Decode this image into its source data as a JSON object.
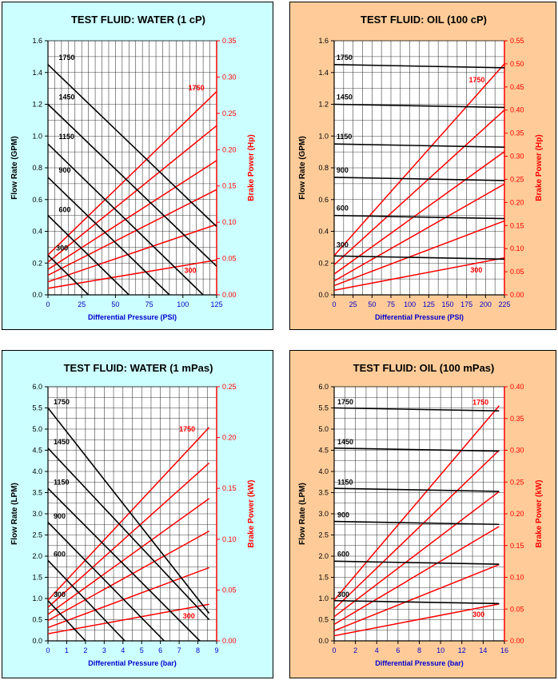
{
  "chart_data": [
    {
      "type": "line",
      "title": "TEST FLUID:  WATER (1 cP)",
      "xlabel": "Differential Pressure (PSI)",
      "ylabel": "Flow Rate (GPM)",
      "y2label": "Brake Power (Hp)",
      "bg": "#ccffff",
      "xlim": [
        0,
        125
      ],
      "xticks": [
        0,
        25,
        50,
        75,
        100,
        125
      ],
      "xminor": 5,
      "ylim": [
        0,
        1.6
      ],
      "yticks": [
        0.0,
        0.2,
        0.4,
        0.6,
        0.8,
        1.0,
        1.2,
        1.4,
        1.6
      ],
      "yminor": 0.1,
      "ydec": 1,
      "y2lim": [
        0,
        0.35
      ],
      "y2ticks": [
        0.0,
        0.05,
        0.1,
        0.15,
        0.2,
        0.25,
        0.3,
        0.35
      ],
      "y2dec": 2,
      "flow": [
        {
          "name": "1750",
          "x": [
            0,
            125
          ],
          "y": [
            1.45,
            0.43
          ]
        },
        {
          "name": "1450",
          "x": [
            0,
            125
          ],
          "y": [
            1.2,
            0.18
          ]
        },
        {
          "name": "1150",
          "x": [
            0,
            115
          ],
          "y": [
            0.95,
            0.0
          ]
        },
        {
          "name": "900",
          "x": [
            0,
            90
          ],
          "y": [
            0.74,
            0.0
          ]
        },
        {
          "name": "600",
          "x": [
            0,
            60
          ],
          "y": [
            0.5,
            0.0
          ]
        },
        {
          "name": "300",
          "x": [
            0,
            30
          ],
          "y": [
            0.25,
            0.0
          ]
        }
      ],
      "power": [
        {
          "name": "1750",
          "x": [
            0,
            125
          ],
          "y": [
            0.055,
            0.28
          ]
        },
        {
          "name": "1450",
          "x": [
            0,
            125
          ],
          "y": [
            0.045,
            0.233
          ]
        },
        {
          "name": "1150",
          "x": [
            0,
            125
          ],
          "y": [
            0.035,
            0.185
          ]
        },
        {
          "name": "900",
          "x": [
            0,
            125
          ],
          "y": [
            0.027,
            0.145
          ]
        },
        {
          "name": "600",
          "x": [
            0,
            125
          ],
          "y": [
            0.018,
            0.097
          ]
        },
        {
          "name": "300",
          "x": [
            0,
            125
          ],
          "y": [
            0.009,
            0.048
          ]
        }
      ],
      "flow_labels": [
        {
          "text": "1750",
          "x": 8,
          "y": 1.47
        },
        {
          "text": "1450",
          "x": 8,
          "y": 1.22
        },
        {
          "text": "1150",
          "x": 8,
          "y": 0.97
        },
        {
          "text": "900",
          "x": 8,
          "y": 0.76
        },
        {
          "text": "600",
          "x": 8,
          "y": 0.51
        },
        {
          "text": "300",
          "x": 6,
          "y": 0.27
        }
      ],
      "power_labels": [
        {
          "text": "1750",
          "x": 104,
          "y": 0.282
        },
        {
          "text": "300",
          "x": 101,
          "y": 0.03
        }
      ]
    },
    {
      "type": "line",
      "title": "TEST FLUID:  OIL (100 cP)",
      "xlabel": "Differential Pressure (PSI)",
      "ylabel": "Flow Rate (GPM)",
      "y2label": "Brake Power (Hp)",
      "bg": "#ffcc99",
      "xlim": [
        0,
        225
      ],
      "xticks": [
        0,
        25,
        50,
        75,
        100,
        125,
        150,
        175,
        200,
        225
      ],
      "xminor": 12.5,
      "ylim": [
        0,
        1.6
      ],
      "yticks": [
        0.0,
        0.2,
        0.4,
        0.6,
        0.8,
        1.0,
        1.2,
        1.4,
        1.6
      ],
      "yminor": 0.1,
      "ydec": 1,
      "y2lim": [
        0,
        0.55
      ],
      "y2ticks": [
        0.0,
        0.05,
        0.1,
        0.15,
        0.2,
        0.25,
        0.3,
        0.35,
        0.4,
        0.45,
        0.5,
        0.55
      ],
      "y2dec": 2,
      "flow": [
        {
          "name": "1750",
          "x": [
            0,
            225
          ],
          "y": [
            1.45,
            1.43
          ]
        },
        {
          "name": "1450",
          "x": [
            0,
            225
          ],
          "y": [
            1.2,
            1.18
          ]
        },
        {
          "name": "1150",
          "x": [
            0,
            225
          ],
          "y": [
            0.95,
            0.93
          ]
        },
        {
          "name": "900",
          "x": [
            0,
            225
          ],
          "y": [
            0.74,
            0.72
          ]
        },
        {
          "name": "600",
          "x": [
            0,
            225
          ],
          "y": [
            0.5,
            0.48
          ]
        },
        {
          "name": "300",
          "x": [
            0,
            225
          ],
          "y": [
            0.245,
            0.225
          ]
        }
      ],
      "power": [
        {
          "name": "1750",
          "x": [
            0,
            225
          ],
          "y": [
            0.085,
            0.5
          ]
        },
        {
          "name": "1450",
          "x": [
            0,
            225
          ],
          "y": [
            0.065,
            0.4
          ]
        },
        {
          "name": "1150",
          "x": [
            0,
            225
          ],
          "y": [
            0.045,
            0.31
          ]
        },
        {
          "name": "900",
          "x": [
            0,
            225
          ],
          "y": [
            0.03,
            0.24
          ]
        },
        {
          "name": "600",
          "x": [
            0,
            225
          ],
          "y": [
            0.02,
            0.16
          ]
        },
        {
          "name": "300",
          "x": [
            0,
            225
          ],
          "y": [
            0.01,
            0.08
          ]
        }
      ],
      "flow_labels": [
        {
          "text": "1750",
          "x": 3,
          "y": 1.47
        },
        {
          "text": "1450",
          "x": 3,
          "y": 1.22
        },
        {
          "text": "1150",
          "x": 3,
          "y": 0.97
        },
        {
          "text": "900",
          "x": 3,
          "y": 0.76
        },
        {
          "text": "600",
          "x": 3,
          "y": 0.52
        },
        {
          "text": "300",
          "x": 3,
          "y": 0.29
        }
      ],
      "power_labels": [
        {
          "text": "1750",
          "x": 178,
          "y": 0.46
        },
        {
          "text": "300",
          "x": 180,
          "y": 0.048
        }
      ]
    },
    {
      "type": "line",
      "title": "TEST FLUID:  WATER (1 mPas)",
      "xlabel": "Differential Pressure (bar)",
      "ylabel": "Flow Rate (LPM)",
      "y2label": "Brake Power (kW)",
      "bg": "#ccffff",
      "xlim": [
        0,
        9
      ],
      "xticks": [
        0,
        1,
        2,
        3,
        4,
        5,
        6,
        7,
        8,
        9
      ],
      "xminor": 0.5,
      "ylim": [
        0,
        6
      ],
      "yticks": [
        0.0,
        0.5,
        1.0,
        1.5,
        2.0,
        2.5,
        3.0,
        3.5,
        4.0,
        4.5,
        5.0,
        5.5,
        6.0
      ],
      "yminor": 0.25,
      "ydec": 1,
      "y2lim": [
        0,
        0.25
      ],
      "y2ticks": [
        0.0,
        0.05,
        0.1,
        0.15,
        0.2,
        0.25
      ],
      "y2dec": 2,
      "flow": [
        {
          "name": "1750",
          "x": [
            0,
            8.6
          ],
          "y": [
            5.5,
            0.65
          ]
        },
        {
          "name": "1450",
          "x": [
            0,
            8.6
          ],
          "y": [
            4.55,
            0.5
          ]
        },
        {
          "name": "1150",
          "x": [
            0,
            8.1
          ],
          "y": [
            3.6,
            0.0
          ]
        },
        {
          "name": "900",
          "x": [
            0,
            6.2
          ],
          "y": [
            2.8,
            0.0
          ]
        },
        {
          "name": "600",
          "x": [
            0,
            4.1
          ],
          "y": [
            1.9,
            0.0
          ]
        },
        {
          "name": "300",
          "x": [
            0,
            2.0
          ],
          "y": [
            0.95,
            0.0
          ]
        }
      ],
      "power": [
        {
          "name": "1750",
          "x": [
            0,
            8.6
          ],
          "y": [
            0.04,
            0.21
          ]
        },
        {
          "name": "1450",
          "x": [
            0,
            8.6
          ],
          "y": [
            0.033,
            0.175
          ]
        },
        {
          "name": "1150",
          "x": [
            0,
            8.6
          ],
          "y": [
            0.026,
            0.14
          ]
        },
        {
          "name": "900",
          "x": [
            0,
            8.6
          ],
          "y": [
            0.02,
            0.108
          ]
        },
        {
          "name": "600",
          "x": [
            0,
            8.6
          ],
          "y": [
            0.013,
            0.072
          ]
        },
        {
          "name": "300",
          "x": [
            0,
            8.6
          ],
          "y": [
            0.007,
            0.036
          ]
        }
      ],
      "flow_labels": [
        {
          "text": "1750",
          "x": 0.3,
          "y": 5.55
        },
        {
          "text": "1450",
          "x": 0.3,
          "y": 4.6
        },
        {
          "text": "1150",
          "x": 0.3,
          "y": 3.65
        },
        {
          "text": "900",
          "x": 0.3,
          "y": 2.85
        },
        {
          "text": "600",
          "x": 0.3,
          "y": 1.95
        },
        {
          "text": "300",
          "x": 0.3,
          "y": 1.0
        }
      ],
      "power_labels": [
        {
          "text": "1750",
          "x": 7.0,
          "y": 0.206
        },
        {
          "text": "300",
          "x": 7.2,
          "y": 0.022
        }
      ]
    },
    {
      "type": "line",
      "title": "TEST FLUID:  OIL (100 mPas)",
      "xlabel": "Differential Pressure (bar)",
      "ylabel": "Flow Rate (LPM)",
      "y2label": "Brake Power (kW)",
      "bg": "#ffcc99",
      "xlim": [
        0,
        16
      ],
      "xticks": [
        0,
        2,
        4,
        6,
        8,
        10,
        12,
        14,
        16
      ],
      "xminor": 1,
      "ylim": [
        0,
        6
      ],
      "yticks": [
        0.0,
        0.5,
        1.0,
        1.5,
        2.0,
        2.5,
        3.0,
        3.5,
        4.0,
        4.5,
        5.0,
        5.5,
        6.0
      ],
      "yminor": 0.25,
      "ydec": 1,
      "y2lim": [
        0,
        0.4
      ],
      "y2ticks": [
        0.0,
        0.05,
        0.1,
        0.15,
        0.2,
        0.25,
        0.3,
        0.35,
        0.4
      ],
      "y2dec": 2,
      "flow": [
        {
          "name": "1750",
          "x": [
            0,
            15.5
          ],
          "y": [
            5.5,
            5.43
          ]
        },
        {
          "name": "1450",
          "x": [
            0,
            15.5
          ],
          "y": [
            4.55,
            4.48
          ]
        },
        {
          "name": "1150",
          "x": [
            0,
            15.5
          ],
          "y": [
            3.6,
            3.53
          ]
        },
        {
          "name": "900",
          "x": [
            0,
            15.5
          ],
          "y": [
            2.82,
            2.75
          ]
        },
        {
          "name": "600",
          "x": [
            0,
            15.5
          ],
          "y": [
            1.88,
            1.81
          ]
        },
        {
          "name": "300",
          "x": [
            0,
            15.5
          ],
          "y": [
            0.95,
            0.88
          ]
        }
      ],
      "power": [
        {
          "name": "1750",
          "x": [
            0,
            15.5
          ],
          "y": [
            0.064,
            0.37
          ]
        },
        {
          "name": "1450",
          "x": [
            0,
            15.5
          ],
          "y": [
            0.05,
            0.3
          ]
        },
        {
          "name": "1150",
          "x": [
            0,
            15.5
          ],
          "y": [
            0.038,
            0.235
          ]
        },
        {
          "name": "900",
          "x": [
            0,
            15.5
          ],
          "y": [
            0.026,
            0.18
          ]
        },
        {
          "name": "600",
          "x": [
            0,
            15.5
          ],
          "y": [
            0.016,
            0.12
          ]
        },
        {
          "name": "300",
          "x": [
            0,
            15.5
          ],
          "y": [
            0.008,
            0.058
          ]
        }
      ],
      "flow_labels": [
        {
          "text": "1750",
          "x": 0.3,
          "y": 5.55
        },
        {
          "text": "1450",
          "x": 0.3,
          "y": 4.6
        },
        {
          "text": "1150",
          "x": 0.3,
          "y": 3.65
        },
        {
          "text": "900",
          "x": 0.3,
          "y": 2.88
        },
        {
          "text": "600",
          "x": 0.3,
          "y": 1.95
        },
        {
          "text": "300",
          "x": 0.3,
          "y": 1.0
        }
      ],
      "power_labels": [
        {
          "text": "1750",
          "x": 13.0,
          "y": 0.372
        },
        {
          "text": "300",
          "x": 13.0,
          "y": 0.038
        }
      ]
    }
  ]
}
